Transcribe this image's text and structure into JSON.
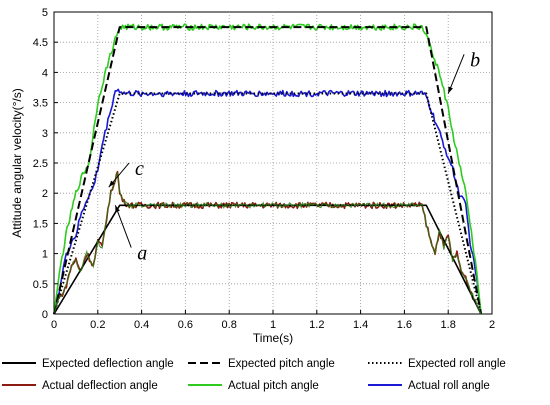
{
  "chart_data": {
    "type": "line",
    "xlabel": "Time(s)",
    "ylabel": "Attitude angular velocity(°/s)",
    "xlim": [
      0,
      2
    ],
    "ylim": [
      0,
      5
    ],
    "xticks": [
      "0",
      "0.2",
      "0.4",
      "0.6",
      "0.8",
      "1",
      "1.2",
      "1.4",
      "1.6",
      "1.8",
      "2"
    ],
    "yticks": [
      "0",
      "0.5",
      "1",
      "1.5",
      "2",
      "2.5",
      "3",
      "3.5",
      "4",
      "4.5",
      "5"
    ],
    "grid": true,
    "legend_position": "bottom",
    "series": [
      {
        "name": "Expected deflection angle",
        "color": "#000000",
        "style": "solid",
        "x": [
          0,
          0.3,
          1.7,
          1.95
        ],
        "y": [
          0,
          1.8,
          1.8,
          0
        ]
      },
      {
        "name": "Expected pitch angle",
        "color": "#000000",
        "style": "dashed",
        "x": [
          0,
          0.3,
          1.7,
          1.95
        ],
        "y": [
          0,
          4.75,
          4.75,
          0
        ]
      },
      {
        "name": "Expected roll angle",
        "color": "#000000",
        "style": "dotted",
        "x": [
          0,
          0.3,
          1.7,
          1.95
        ],
        "y": [
          0,
          3.65,
          3.65,
          0
        ]
      },
      {
        "name": "Actual deflection angle",
        "color": "#8b1a10",
        "style": "solid",
        "x": [
          0,
          0.02,
          0.05,
          0.08,
          0.1,
          0.12,
          0.15,
          0.18,
          0.2,
          0.22,
          0.24,
          0.26,
          0.28,
          0.29,
          0.3,
          0.32,
          0.35,
          1.68,
          1.7,
          1.72,
          1.74,
          1.76,
          1.78,
          1.8,
          1.82,
          1.84,
          1.86,
          1.88,
          1.9,
          1.93,
          1.95
        ],
        "y": [
          0,
          0.25,
          0.4,
          0.8,
          0.9,
          0.7,
          1.0,
          0.8,
          1.2,
          1.1,
          1.6,
          2.0,
          2.25,
          2.35,
          2.0,
          1.85,
          1.8,
          1.8,
          1.5,
          1.2,
          1.0,
          1.4,
          1.1,
          1.3,
          0.9,
          1.0,
          0.7,
          0.6,
          0.4,
          0.15,
          0
        ]
      },
      {
        "name": "Actual pitch angle",
        "color": "#2ecc1f",
        "style": "solid",
        "x": [
          0,
          0.03,
          0.06,
          0.1,
          0.13,
          0.16,
          0.2,
          0.22,
          0.25,
          0.28,
          0.3,
          0.32,
          1.68,
          1.7,
          1.72,
          1.75,
          1.78,
          1.8,
          1.82,
          1.85,
          1.88,
          1.9,
          1.93,
          1.95
        ],
        "y": [
          0,
          0.8,
          1.4,
          2.0,
          2.3,
          2.5,
          3.5,
          3.8,
          4.2,
          4.55,
          4.75,
          4.75,
          4.75,
          4.6,
          4.4,
          4.1,
          3.7,
          3.4,
          3.0,
          2.5,
          2.0,
          1.5,
          0.7,
          0
        ]
      },
      {
        "name": "Actual roll angle",
        "color": "#1a1ad6",
        "style": "solid",
        "x": [
          0,
          0.03,
          0.05,
          0.08,
          0.1,
          0.12,
          0.15,
          0.18,
          0.2,
          0.22,
          0.24,
          0.26,
          0.28,
          0.3,
          0.32,
          1.68,
          1.7,
          1.72,
          1.75,
          1.78,
          1.8,
          1.82,
          1.85,
          1.88,
          1.9,
          1.93,
          1.95
        ],
        "y": [
          0,
          0.5,
          0.9,
          1.2,
          1.3,
          1.6,
          1.9,
          2.1,
          2.4,
          2.8,
          3.1,
          3.4,
          3.7,
          3.7,
          3.65,
          3.65,
          3.6,
          3.4,
          3.1,
          2.8,
          2.6,
          2.4,
          2.0,
          1.8,
          1.2,
          0.6,
          0
        ]
      },
      {
        "name": "",
        "color": "#2b7a12",
        "style": "solid",
        "role": "actual-deflection-noisy-overlay",
        "x": [],
        "y": []
      }
    ],
    "annotations": [
      {
        "text": "a",
        "x": 0.38,
        "y": 1.0,
        "arrow_to": [
          0.28,
          1.8
        ]
      },
      {
        "text": "b",
        "x": 1.9,
        "y": 4.2,
        "arrow_to": [
          1.8,
          3.65
        ]
      },
      {
        "text": "c",
        "x": 0.37,
        "y": 2.4,
        "arrow_to": [
          0.25,
          2.1
        ]
      }
    ]
  }
}
